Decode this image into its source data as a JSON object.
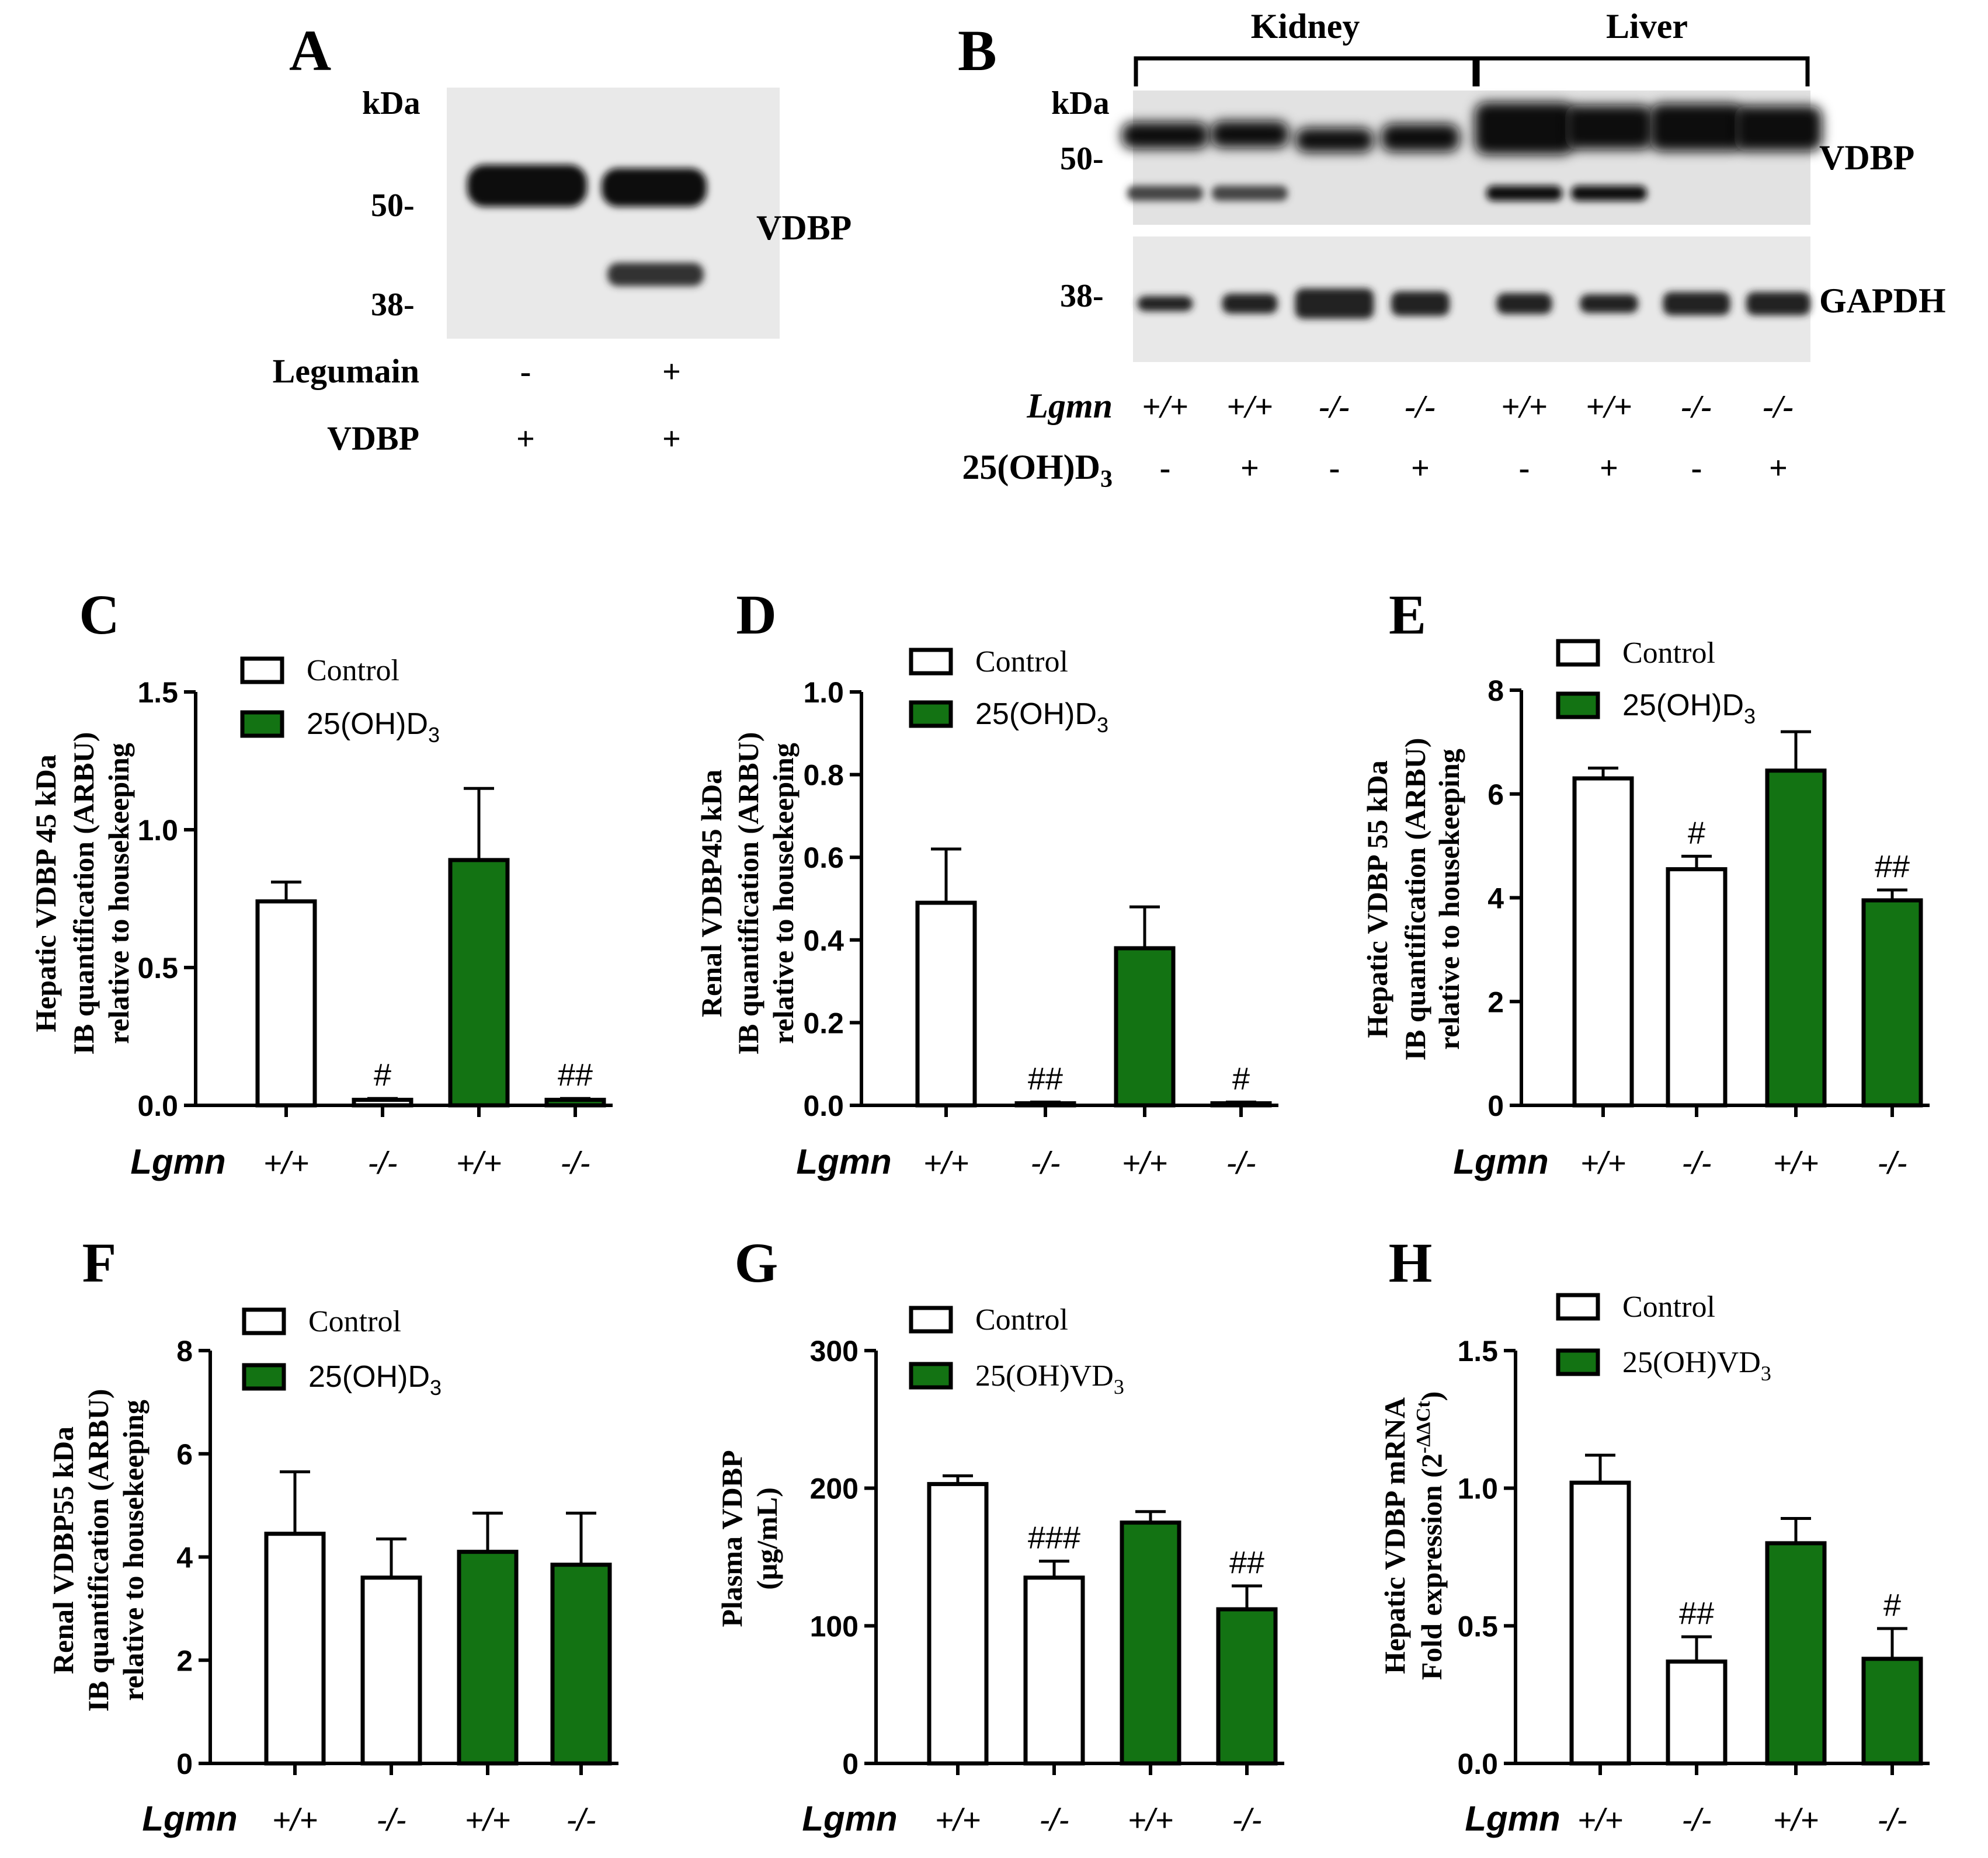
{
  "blot_a": {
    "panel_letter": "A",
    "kda": "kDa",
    "markers": [
      "50-",
      "38-"
    ],
    "band_label": "VDBP",
    "rows": [
      {
        "label": "Legumain",
        "values": [
          "-",
          "+"
        ]
      },
      {
        "label": "VDBP",
        "values": [
          "+",
          "+"
        ]
      }
    ]
  },
  "blot_b": {
    "panel_letter": "B",
    "kda": "kDa",
    "markers": [
      "50-",
      "38-"
    ],
    "groups": [
      "Kidney",
      "Liver"
    ],
    "band_labels": [
      "VDBP",
      "GAPDH"
    ],
    "genotype_label": "Lgmn",
    "genotypes": [
      "+/+",
      "+/+",
      "-/-",
      "-/-",
      "+/+",
      "+/+",
      "-/-",
      "-/-"
    ],
    "treatment_label": "25(OH)D",
    "treatment_sub": "3",
    "treatments": [
      "-",
      "+",
      "-",
      "+",
      "-",
      "+",
      "-",
      "+"
    ]
  },
  "colors": {
    "control": "#ffffff",
    "treated": "#137313",
    "stroke": "#000000"
  },
  "chart_data": [
    {
      "panel": "C",
      "type": "bar",
      "ylabel_lines": [
        "Hepatic VDBP 45 kDa",
        "IB quantification (ARBU)",
        "relative to housekeeping"
      ],
      "categories": [
        "+/+",
        "-/-",
        "+/+",
        "-/-"
      ],
      "xlabel": "Lgmn",
      "values": [
        0.74,
        0.02,
        0.89,
        0.02
      ],
      "errors": [
        0.07,
        0.005,
        0.26,
        0.005
      ],
      "fills": [
        "control",
        "control",
        "treated",
        "treated"
      ],
      "annotations": [
        "",
        "#",
        "",
        "##"
      ],
      "ylim": [
        0,
        1.5
      ],
      "ticks": [
        "0.0",
        "0.5",
        "1.0",
        "1.5"
      ],
      "legend": [
        {
          "text": "Control",
          "sub": ""
        },
        {
          "text": "25(OH)D",
          "sub": "3"
        }
      ]
    },
    {
      "panel": "D",
      "type": "bar",
      "ylabel_lines": [
        "Renal VDBP45 kDa",
        "IB quantification (ARBU)",
        "relative to housekeeping"
      ],
      "categories": [
        "+/+",
        "-/-",
        "+/+",
        "-/-"
      ],
      "xlabel": "Lgmn",
      "values": [
        0.49,
        0.005,
        0.38,
        0.005
      ],
      "errors": [
        0.13,
        0.003,
        0.1,
        0.003
      ],
      "fills": [
        "control",
        "control",
        "treated",
        "treated"
      ],
      "annotations": [
        "",
        "##",
        "",
        "#"
      ],
      "ylim": [
        0,
        1.0
      ],
      "ticks": [
        "0.0",
        "0.2",
        "0.4",
        "0.6",
        "0.8",
        "1.0"
      ],
      "legend": [
        {
          "text": "Control",
          "sub": ""
        },
        {
          "text": "25(OH)D",
          "sub": "3"
        }
      ]
    },
    {
      "panel": "E",
      "type": "bar",
      "ylabel_lines": [
        "Hepatic VDBP 55 kDa",
        "IB quantification (ARBU)",
        "relative to housekeeping"
      ],
      "categories": [
        "+/+",
        "-/-",
        "+/+",
        "-/-"
      ],
      "xlabel": "Lgmn",
      "values": [
        6.3,
        4.55,
        6.45,
        3.95
      ],
      "errors": [
        0.2,
        0.25,
        0.75,
        0.2
      ],
      "fills": [
        "control",
        "control",
        "treated",
        "treated"
      ],
      "annotations": [
        "",
        "#",
        "",
        "##"
      ],
      "ylim": [
        0,
        8
      ],
      "ticks": [
        "0",
        "2",
        "4",
        "6",
        "8"
      ],
      "legend": [
        {
          "text": "Control",
          "sub": ""
        },
        {
          "text": "25(OH)D",
          "sub": "3"
        }
      ]
    },
    {
      "panel": "F",
      "type": "bar",
      "ylabel_lines": [
        "Renal VDBP55 kDa",
        "IB quantification (ARBU)",
        "relative to housekeeping"
      ],
      "categories": [
        "+/+",
        "-/-",
        "+/+",
        "-/-"
      ],
      "xlabel": "Lgmn",
      "values": [
        4.45,
        3.6,
        4.1,
        3.85
      ],
      "errors": [
        1.2,
        0.75,
        0.75,
        1.0
      ],
      "fills": [
        "control",
        "control",
        "treated",
        "treated"
      ],
      "annotations": [
        "",
        "",
        "",
        ""
      ],
      "ylim": [
        0,
        8
      ],
      "ticks": [
        "0",
        "2",
        "4",
        "6",
        "8"
      ],
      "legend": [
        {
          "text": "Control",
          "sub": ""
        },
        {
          "text": "25(OH)D",
          "sub": "3"
        }
      ]
    },
    {
      "panel": "G",
      "type": "bar",
      "ylabel_lines": [
        "Plasma VDBP",
        "(μg/mL)"
      ],
      "categories": [
        "+/+",
        "-/-",
        "+/+",
        "-/-"
      ],
      "xlabel": "Lgmn",
      "values": [
        203,
        135,
        175,
        112
      ],
      "errors": [
        6,
        12,
        8,
        17
      ],
      "fills": [
        "control",
        "control",
        "treated",
        "treated"
      ],
      "annotations": [
        "",
        "###",
        "",
        "##"
      ],
      "ylim": [
        0,
        300
      ],
      "ticks": [
        "0",
        "100",
        "200",
        "300"
      ],
      "legend": [
        {
          "text": "Control",
          "sub": ""
        },
        {
          "text": "25(OH)VD",
          "sub": "3"
        }
      ]
    },
    {
      "panel": "H",
      "type": "bar",
      "ylabel_lines": [
        "Hepatic  VDBP mRNA",
        "Fold expression (2",
        "-ΔΔCt",
        ")"
      ],
      "categories": [
        "+/+",
        "-/-",
        "+/+",
        "-/-"
      ],
      "xlabel": "Lgmn",
      "values": [
        1.02,
        0.37,
        0.8,
        0.38
      ],
      "errors": [
        0.1,
        0.09,
        0.09,
        0.11
      ],
      "fills": [
        "control",
        "control",
        "treated",
        "treated"
      ],
      "annotations": [
        "",
        "##",
        "",
        "#"
      ],
      "ylim": [
        0,
        1.5
      ],
      "ticks": [
        "0.0",
        "0.5",
        "1.0",
        "1.5"
      ],
      "legend": [
        {
          "text": "Control",
          "sub": ""
        },
        {
          "text": "25(OH)VD",
          "sub": "3"
        }
      ]
    }
  ]
}
